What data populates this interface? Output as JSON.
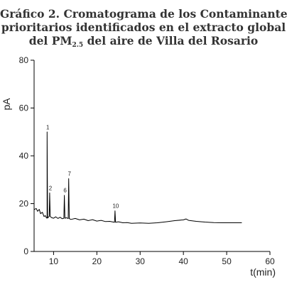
{
  "title": {
    "line1": "Gráfico 2. Cromatograma de los Contaminantes",
    "line2": "prioritarios identificados en el extracto global",
    "line3_pre": "del PM",
    "line3_sub": "2.5",
    "line3_post": " del aire de Villa del Rosario"
  },
  "chart_data": {
    "type": "line",
    "xlabel": "t(min)",
    "ylabel": "pA",
    "xlim": [
      5.5,
      60
    ],
    "ylim": [
      0,
      80
    ],
    "xticks": [
      10,
      20,
      30,
      40,
      50,
      60
    ],
    "yticks": [
      0,
      20,
      40,
      60,
      80
    ],
    "grid": false,
    "line_color": "#000000",
    "baseline": [
      [
        5.5,
        17.5
      ],
      [
        6.0,
        18.0
      ],
      [
        6.3,
        16.8
      ],
      [
        6.7,
        17.6
      ],
      [
        7.0,
        15.8
      ],
      [
        7.4,
        16.4
      ],
      [
        7.8,
        14.6
      ],
      [
        8.1,
        15.0
      ],
      [
        8.5,
        14.0
      ],
      [
        9.0,
        14.8
      ],
      [
        9.5,
        14.2
      ],
      [
        10.0,
        13.9
      ],
      [
        10.5,
        14.5
      ],
      [
        11.0,
        13.8
      ],
      [
        11.5,
        14.3
      ],
      [
        12.0,
        13.7
      ],
      [
        13.0,
        14.1
      ],
      [
        14.0,
        13.4
      ],
      [
        15.0,
        13.8
      ],
      [
        16.0,
        13.2
      ],
      [
        17.0,
        13.5
      ],
      [
        18.0,
        12.9
      ],
      [
        19.0,
        13.3
      ],
      [
        20.0,
        12.7
      ],
      [
        21.0,
        13.0
      ],
      [
        22.0,
        12.5
      ],
      [
        23.0,
        12.6
      ],
      [
        24.0,
        12.2
      ],
      [
        25.0,
        12.4
      ],
      [
        26.0,
        12.0
      ],
      [
        27.0,
        12.1
      ],
      [
        28.0,
        11.8
      ],
      [
        30.0,
        11.9
      ],
      [
        32.0,
        11.8
      ],
      [
        34.0,
        12.0
      ],
      [
        36.0,
        12.4
      ],
      [
        38.0,
        12.9
      ],
      [
        40.0,
        13.2
      ],
      [
        40.6,
        13.6
      ],
      [
        41.2,
        13.0
      ],
      [
        43.0,
        12.6
      ],
      [
        45.0,
        12.3
      ],
      [
        47.0,
        12.1
      ],
      [
        49.0,
        12.0
      ],
      [
        51.0,
        12.0
      ],
      [
        53.5,
        12.0
      ]
    ],
    "peaks": [
      {
        "label": "1",
        "x": 8.5,
        "height": 50
      },
      {
        "label": "2",
        "x": 9.1,
        "height": 24.5
      },
      {
        "label": "6",
        "x": 12.5,
        "height": 23.5
      },
      {
        "label": "7",
        "x": 13.5,
        "height": 30.5
      },
      {
        "label": "10",
        "x": 24.2,
        "height": 17
      }
    ]
  }
}
